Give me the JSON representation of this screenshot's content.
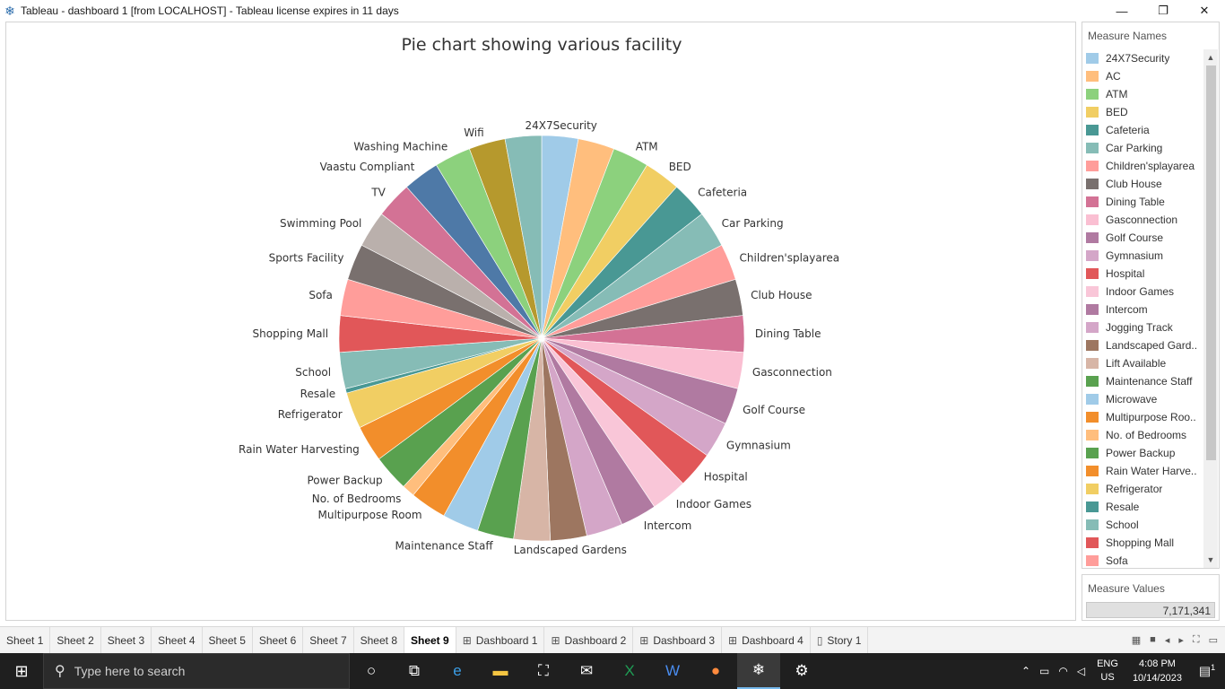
{
  "window": {
    "title": "Tableau - dashboard 1 [from LOCALHOST] - Tableau license expires in 11 days",
    "app_icon": "tableau-icon",
    "minimize": "—",
    "restore": "❐",
    "close": "✕"
  },
  "chart_data": {
    "type": "pie",
    "title": "Pie chart showing various facility",
    "slices": [
      {
        "label": "24X7Security",
        "value": 1,
        "color": "#A0CBE8"
      },
      {
        "label": "AC",
        "value": 1,
        "color": "#FFBE7D"
      },
      {
        "label": "ATM",
        "value": 1,
        "color": "#8CD17D"
      },
      {
        "label": "BED",
        "value": 1,
        "color": "#F1CE63"
      },
      {
        "label": "Cafeteria",
        "value": 1,
        "color": "#499894"
      },
      {
        "label": "Car Parking",
        "value": 1,
        "color": "#86BCB6"
      },
      {
        "label": "Children'splayarea",
        "value": 1,
        "color": "#FF9D9A"
      },
      {
        "label": "Club House",
        "value": 1,
        "color": "#79706E"
      },
      {
        "label": "Dining Table",
        "value": 1,
        "color": "#D37295"
      },
      {
        "label": "Gasconnection",
        "value": 1,
        "color": "#FABFD2"
      },
      {
        "label": "Golf Course",
        "value": 1,
        "color": "#B07AA1"
      },
      {
        "label": "Gymnasium",
        "value": 1,
        "color": "#D4A6C8"
      },
      {
        "label": "Hospital",
        "value": 1,
        "color": "#E15759"
      },
      {
        "label": "Indoor Games",
        "value": 1,
        "color": "#F9C6D8"
      },
      {
        "label": "Intercom",
        "value": 1,
        "color": "#B07AA1"
      },
      {
        "label": "Jogging Track",
        "value": 1,
        "color": "#D4A6C8"
      },
      {
        "label": "Landscaped Gardens",
        "value": 1,
        "color": "#9D7660"
      },
      {
        "label": "Lift Available",
        "value": 1,
        "color": "#D7B5A6"
      },
      {
        "label": "Maintenance Staff",
        "value": 1,
        "color": "#59A14F"
      },
      {
        "label": "Microwave",
        "value": 1,
        "color": "#A0CBE8"
      },
      {
        "label": "Multipurpose Room",
        "value": 1,
        "color": "#F28E2B"
      },
      {
        "label": "No. of Bedrooms",
        "value": 0.35,
        "color": "#FFBE7D"
      },
      {
        "label": "Power Backup",
        "value": 1,
        "color": "#59A14F"
      },
      {
        "label": "Rain Water Harvesting",
        "value": 1,
        "color": "#F28E2B"
      },
      {
        "label": "Refrigerator",
        "value": 1,
        "color": "#F1CE63"
      },
      {
        "label": "Resale",
        "value": 0.12,
        "color": "#499894"
      },
      {
        "label": "School",
        "value": 1,
        "color": "#86BCB6"
      },
      {
        "label": "Shopping Mall",
        "value": 1,
        "color": "#E15759"
      },
      {
        "label": "Sofa",
        "value": 1,
        "color": "#FF9D9A"
      },
      {
        "label": "Sports Facility",
        "value": 1,
        "color": "#79706E"
      },
      {
        "label": "Swimming Pool",
        "value": 1,
        "color": "#BAB0AC"
      },
      {
        "label": "TV",
        "value": 1,
        "color": "#D37295"
      },
      {
        "label": "Vaastu Compliant",
        "value": 1,
        "color": "#4E79A7"
      },
      {
        "label": "Washing Machine",
        "value": 1,
        "color": "#8CD17D"
      },
      {
        "label": "Wifi",
        "value": 1,
        "color": "#B6992D"
      },
      {
        "label": "",
        "value": 1,
        "color": "#86BCB6"
      }
    ],
    "visible_slice_labels": [
      "24X7Security",
      "ATM",
      "BED",
      "Cafeteria",
      "Car Parking",
      "Children'splayarea",
      "Club House",
      "Dining Table",
      "Gasconnection",
      "Golf Course",
      "Gymnasium",
      "Hospital",
      "Indoor Games",
      "Intercom",
      "Landscaped Gardens",
      "Maintenance Staff",
      "Multipurpose Room",
      "No. of Bedrooms",
      "Power Backup",
      "Rain Water Harvesting",
      "Refrigerator",
      "Resale",
      "School",
      "Shopping Mall",
      "Sofa",
      "Sports Facility",
      "Swimming Pool",
      "TV",
      "Vaastu Compliant",
      "Washing Machine",
      "Wifi"
    ],
    "legend_placement": "right"
  },
  "legend": {
    "title": "Measure Names",
    "items": [
      {
        "label": "24X7Security",
        "color": "#A0CBE8"
      },
      {
        "label": "AC",
        "color": "#FFBE7D"
      },
      {
        "label": "ATM",
        "color": "#8CD17D"
      },
      {
        "label": "BED",
        "color": "#F1CE63"
      },
      {
        "label": "Cafeteria",
        "color": "#499894"
      },
      {
        "label": "Car Parking",
        "color": "#86BCB6"
      },
      {
        "label": "Children'splayarea",
        "color": "#FF9D9A"
      },
      {
        "label": "Club House",
        "color": "#79706E"
      },
      {
        "label": "Dining Table",
        "color": "#D37295"
      },
      {
        "label": "Gasconnection",
        "color": "#FABFD2"
      },
      {
        "label": "Golf Course",
        "color": "#B07AA1"
      },
      {
        "label": "Gymnasium",
        "color": "#D4A6C8"
      },
      {
        "label": "Hospital",
        "color": "#E15759"
      },
      {
        "label": "Indoor Games",
        "color": "#F9C6D8"
      },
      {
        "label": "Intercom",
        "color": "#B07AA1"
      },
      {
        "label": "Jogging Track",
        "color": "#D4A6C8"
      },
      {
        "label": "Landscaped Gard..",
        "color": "#9D7660"
      },
      {
        "label": "Lift Available",
        "color": "#D7B5A6"
      },
      {
        "label": "Maintenance Staff",
        "color": "#59A14F"
      },
      {
        "label": "Microwave",
        "color": "#A0CBE8"
      },
      {
        "label": "Multipurpose Roo..",
        "color": "#F28E2B"
      },
      {
        "label": "No. of Bedrooms",
        "color": "#FFBE7D"
      },
      {
        "label": "Power Backup",
        "color": "#59A14F"
      },
      {
        "label": "Rain Water Harve..",
        "color": "#F28E2B"
      },
      {
        "label": "Refrigerator",
        "color": "#F1CE63"
      },
      {
        "label": "Resale",
        "color": "#499894"
      },
      {
        "label": "School",
        "color": "#86BCB6"
      },
      {
        "label": "Shopping Mall",
        "color": "#E15759"
      },
      {
        "label": "Sofa",
        "color": "#FF9D9A"
      }
    ]
  },
  "measure_values": {
    "title": "Measure Values",
    "value": "7,171,341"
  },
  "sheet_tabs": [
    {
      "label": "Sheet 1",
      "icon": "",
      "active": false
    },
    {
      "label": "Sheet 2",
      "icon": "",
      "active": false
    },
    {
      "label": "Sheet 3",
      "icon": "",
      "active": false
    },
    {
      "label": "Sheet 4",
      "icon": "",
      "active": false
    },
    {
      "label": "Sheet 5",
      "icon": "",
      "active": false
    },
    {
      "label": "Sheet 6",
      "icon": "",
      "active": false
    },
    {
      "label": "Sheet 7",
      "icon": "",
      "active": false
    },
    {
      "label": "Sheet 8",
      "icon": "",
      "active": false
    },
    {
      "label": "Sheet 9",
      "icon": "",
      "active": true
    },
    {
      "label": "Dashboard 1",
      "icon": "⊞",
      "active": false
    },
    {
      "label": "Dashboard 2",
      "icon": "⊞",
      "active": false
    },
    {
      "label": "Dashboard 3",
      "icon": "⊞",
      "active": false
    },
    {
      "label": "Dashboard 4",
      "icon": "⊞",
      "active": false
    },
    {
      "label": "Story 1",
      "icon": "▯",
      "active": false
    }
  ],
  "taskbar": {
    "search_placeholder": "Type here to search",
    "lang_top": "ENG",
    "lang_bottom": "US",
    "time": "4:08 PM",
    "date": "10/14/2023",
    "notification_count": "1"
  }
}
